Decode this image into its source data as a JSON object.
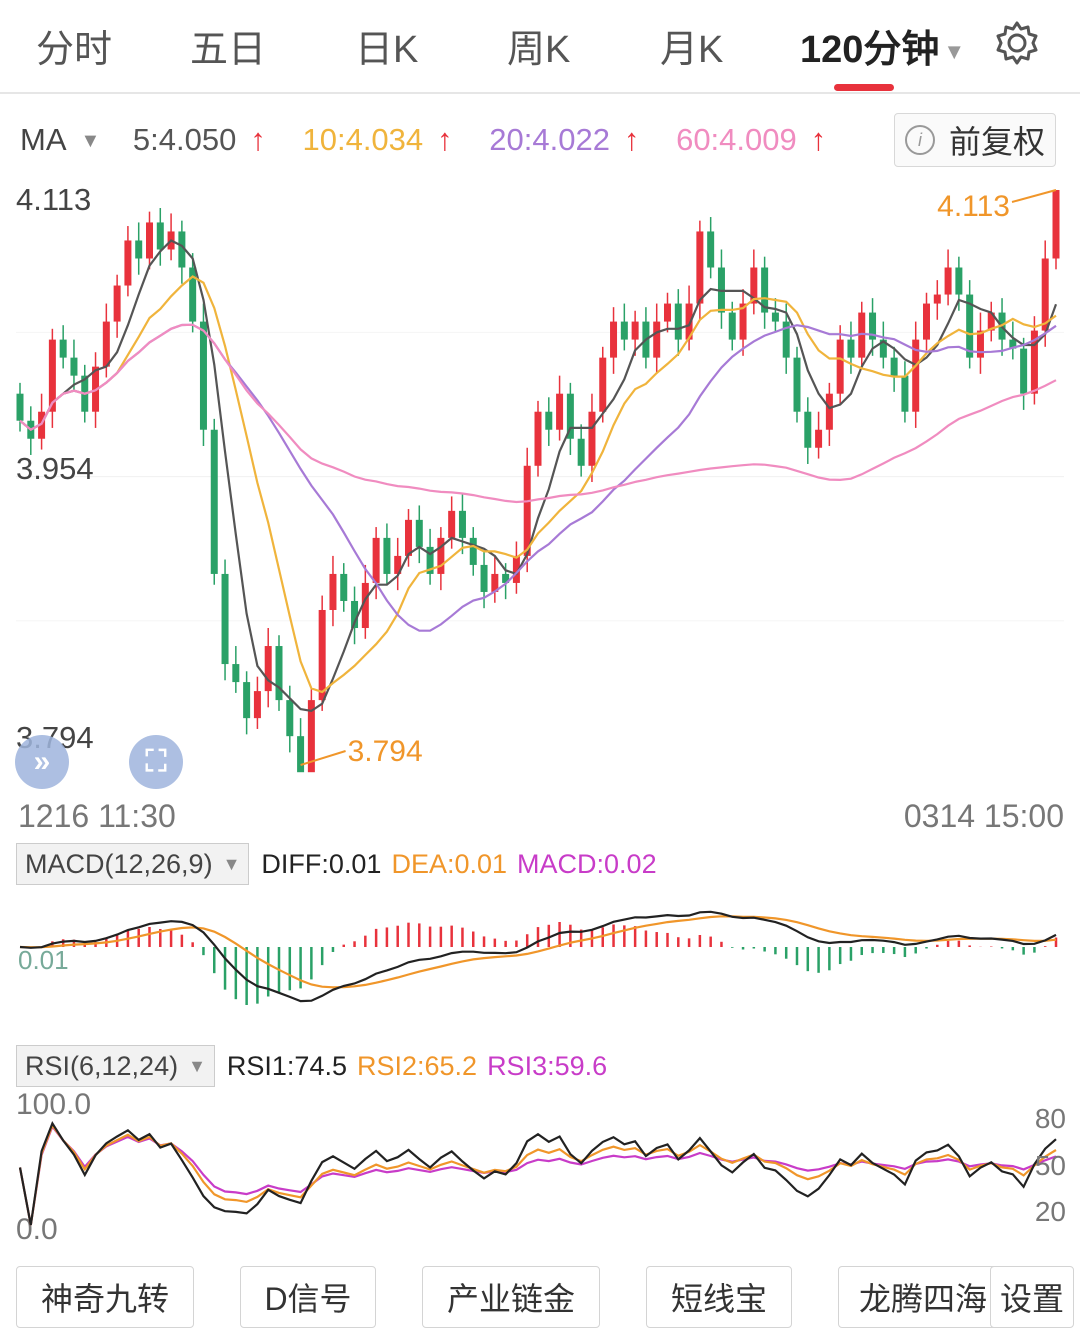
{
  "tabs": [
    {
      "label": "分时",
      "active": false
    },
    {
      "label": "五日",
      "active": false
    },
    {
      "label": "日K",
      "active": false
    },
    {
      "label": "周K",
      "active": false
    },
    {
      "label": "月K",
      "active": false
    },
    {
      "label": "120分钟",
      "active": true
    }
  ],
  "ma_legend": {
    "label": "MA",
    "items": [
      {
        "text": "5:4.050",
        "color": "#555555"
      },
      {
        "text": "10:4.034",
        "color": "#f0b43c"
      },
      {
        "text": "20:4.022",
        "color": "#a77ad6"
      },
      {
        "text": "60:4.009",
        "color": "#f08cc0"
      }
    ],
    "arrow": "↑"
  },
  "adjust_button": "前复权",
  "price_axis": {
    "max": "4.113",
    "mid": "3.954",
    "min": "3.794"
  },
  "markers": {
    "high": "4.113",
    "low": "3.794"
  },
  "time_axis": {
    "start": "1216 11:30",
    "end": "0314 15:00"
  },
  "macd": {
    "label": "MACD(12,26,9)",
    "diff": "DIFF:0.01",
    "dea": "DEA:0.01",
    "macd": "MACD:0.02",
    "zero_label": "0.01"
  },
  "rsi": {
    "label": "RSI(6,12,24)",
    "rsi1": "RSI1:74.5",
    "rsi2": "RSI2:65.2",
    "rsi3": "RSI3:59.6",
    "top": "100.0",
    "bottom": "0.0",
    "right_ticks": [
      "80",
      "50",
      "20"
    ]
  },
  "bottom_buttons": [
    "神奇九转",
    "D信号",
    "产业链金",
    "短线宝",
    "龙腾四海",
    "设置"
  ],
  "colors": {
    "up": "#e8323c",
    "down": "#2aa167",
    "ma5": "#555555",
    "ma10": "#f0b43c",
    "ma20": "#a77ad6",
    "ma60": "#f08cc0",
    "accent": "#f0962a"
  },
  "chart_data": {
    "type": "candlestick",
    "ylim": [
      3.794,
      4.113
    ],
    "candles": [
      [
        4.0,
        3.985
      ],
      [
        3.985,
        3.975
      ],
      [
        3.975,
        3.99
      ],
      [
        3.99,
        4.03
      ],
      [
        4.03,
        4.02
      ],
      [
        4.02,
        4.01
      ],
      [
        4.01,
        3.99
      ],
      [
        3.99,
        4.015
      ],
      [
        4.015,
        4.04
      ],
      [
        4.04,
        4.06
      ],
      [
        4.06,
        4.085
      ],
      [
        4.085,
        4.075
      ],
      [
        4.075,
        4.095
      ],
      [
        4.095,
        4.08
      ],
      [
        4.08,
        4.09
      ],
      [
        4.09,
        4.07
      ],
      [
        4.07,
        4.04
      ],
      [
        4.04,
        3.98
      ],
      [
        3.98,
        3.9
      ],
      [
        3.9,
        3.85
      ],
      [
        3.85,
        3.84
      ],
      [
        3.84,
        3.82
      ],
      [
        3.82,
        3.835
      ],
      [
        3.835,
        3.86
      ],
      [
        3.86,
        3.83
      ],
      [
        3.83,
        3.81
      ],
      [
        3.81,
        3.79
      ],
      [
        3.79,
        3.83
      ],
      [
        3.83,
        3.88
      ],
      [
        3.88,
        3.9
      ],
      [
        3.9,
        3.885
      ],
      [
        3.885,
        3.87
      ],
      [
        3.87,
        3.895
      ],
      [
        3.895,
        3.92
      ],
      [
        3.92,
        3.9
      ],
      [
        3.9,
        3.91
      ],
      [
        3.91,
        3.93
      ],
      [
        3.93,
        3.915
      ],
      [
        3.915,
        3.9
      ],
      [
        3.9,
        3.92
      ],
      [
        3.92,
        3.935
      ],
      [
        3.935,
        3.92
      ],
      [
        3.92,
        3.905
      ],
      [
        3.905,
        3.89
      ],
      [
        3.89,
        3.9
      ],
      [
        3.9,
        3.895
      ],
      [
        3.895,
        3.91
      ],
      [
        3.91,
        3.96
      ],
      [
        3.96,
        3.99
      ],
      [
        3.99,
        3.98
      ],
      [
        3.98,
        4.0
      ],
      [
        4.0,
        3.975
      ],
      [
        3.975,
        3.96
      ],
      [
        3.96,
        3.99
      ],
      [
        3.99,
        4.02
      ],
      [
        4.02,
        4.04
      ],
      [
        4.04,
        4.03
      ],
      [
        4.03,
        4.04
      ],
      [
        4.04,
        4.02
      ],
      [
        4.02,
        4.04
      ],
      [
        4.04,
        4.05
      ],
      [
        4.05,
        4.03
      ],
      [
        4.03,
        4.05
      ],
      [
        4.05,
        4.09
      ],
      [
        4.09,
        4.07
      ],
      [
        4.07,
        4.045
      ],
      [
        4.045,
        4.03
      ],
      [
        4.03,
        4.05
      ],
      [
        4.05,
        4.07
      ],
      [
        4.07,
        4.045
      ],
      [
        4.045,
        4.04
      ],
      [
        4.04,
        4.02
      ],
      [
        4.02,
        3.99
      ],
      [
        3.99,
        3.97
      ],
      [
        3.97,
        3.98
      ],
      [
        3.98,
        4.0
      ],
      [
        4.0,
        4.03
      ],
      [
        4.03,
        4.02
      ],
      [
        4.02,
        4.045
      ],
      [
        4.045,
        4.03
      ],
      [
        4.03,
        4.02
      ],
      [
        4.02,
        4.01
      ],
      [
        4.01,
        3.99
      ],
      [
        3.99,
        4.03
      ],
      [
        4.03,
        4.05
      ],
      [
        4.05,
        4.055
      ],
      [
        4.055,
        4.07
      ],
      [
        4.07,
        4.055
      ],
      [
        4.055,
        4.02
      ],
      [
        4.02,
        4.035
      ],
      [
        4.035,
        4.045
      ],
      [
        4.045,
        4.03
      ],
      [
        4.03,
        4.025
      ],
      [
        4.025,
        4.0
      ],
      [
        4.0,
        4.035
      ],
      [
        4.035,
        4.075
      ],
      [
        4.075,
        4.113
      ]
    ]
  }
}
